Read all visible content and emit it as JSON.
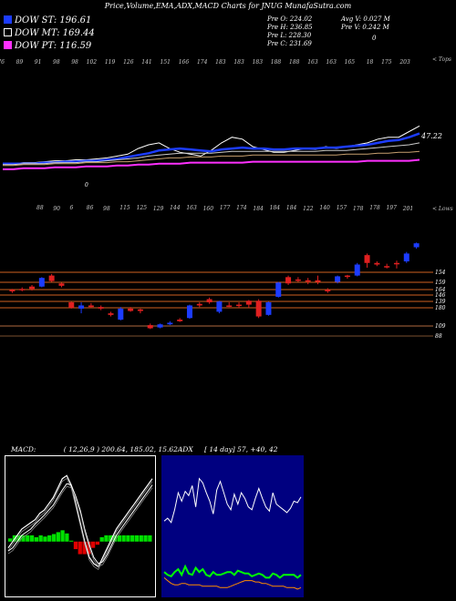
{
  "title": "Price,Volume,EMA,ADX,MACD Charts for JNUG MunafaSutra.com",
  "legend": [
    {
      "label": "DOW ST: 196.61",
      "color": "#1c3cff"
    },
    {
      "label": "DOW MT: 169.44",
      "color": "#000000"
    },
    {
      "label": "DOW PT: 116.59",
      "color": "#ff30ff"
    }
  ],
  "price_info": {
    "open": "Pre  O: 224.02",
    "high": "Pre  H: 236.85",
    "low": "Pre  L: 228.30",
    "close": "Pre  C: 231.69",
    "avg_vol": "Avg V: 0.027 M",
    "pre_vol": "Pre  V: 0.242  M",
    "zero": "0"
  },
  "panel_labels": {
    "top": "< Tops",
    "low": "< Lows"
  },
  "ema_panel": {
    "last_value": "47.22",
    "zero_tick": "0"
  },
  "macd_text": {
    "label": "MACD:",
    "params": "( 12,26,9 ) 200.64,  185.02,  15.62",
    "adx": "ADX",
    "adx_values": "[ 14  day] 57,  +40,  42"
  },
  "chart_data": [
    {
      "type": "candlestick",
      "top_labels": [
        "76",
        "89",
        "91",
        "98",
        "98",
        "102",
        "119",
        "126",
        "141",
        "151",
        "166",
        "174",
        "183",
        "183",
        "183",
        "188",
        "188",
        "163",
        "163",
        "165",
        "18",
        "175",
        "203"
      ],
      "bottom_labels": [
        "88",
        "90",
        "6",
        "86",
        "98",
        "115",
        "125",
        "129",
        "144",
        "163",
        "160",
        "177",
        "174",
        "184",
        "184",
        "184",
        "122",
        "140",
        "157",
        "178",
        "178",
        "197",
        "201"
      ],
      "levels": [
        "154",
        "159",
        "164",
        "146",
        "139",
        "180",
        "109",
        "88"
      ],
      "candles": [
        {
          "o": 138,
          "h": 141,
          "l": 136,
          "c": 140,
          "up": false
        },
        {
          "o": 140,
          "h": 143,
          "l": 138,
          "c": 141,
          "up": false
        },
        {
          "o": 141,
          "h": 146,
          "l": 139,
          "c": 144,
          "up": false
        },
        {
          "o": 144,
          "h": 156,
          "l": 143,
          "c": 155,
          "up": true
        },
        {
          "o": 158,
          "h": 160,
          "l": 150,
          "c": 151,
          "up": false
        },
        {
          "o": 148,
          "h": 149,
          "l": 143,
          "c": 145,
          "up": false
        },
        {
          "o": 124,
          "h": 125,
          "l": 116,
          "c": 117,
          "up": false
        },
        {
          "o": 116,
          "h": 124,
          "l": 110,
          "c": 120,
          "up": true
        },
        {
          "o": 120,
          "h": 123,
          "l": 117,
          "c": 118,
          "up": false
        },
        {
          "o": 118,
          "h": 120,
          "l": 114,
          "c": 116,
          "up": false
        },
        {
          "o": 108,
          "h": 112,
          "l": 106,
          "c": 110,
          "up": false
        },
        {
          "o": 102,
          "h": 118,
          "l": 101,
          "c": 116,
          "up": true
        },
        {
          "o": 116,
          "h": 118,
          "l": 112,
          "c": 113,
          "up": false
        },
        {
          "o": 113,
          "h": 116,
          "l": 110,
          "c": 115,
          "up": false
        },
        {
          "o": 95,
          "h": 97,
          "l": 90,
          "c": 91,
          "up": false
        },
        {
          "o": 92,
          "h": 97,
          "l": 91,
          "c": 96,
          "up": true
        },
        {
          "o": 96,
          "h": 100,
          "l": 95,
          "c": 98,
          "up": true
        },
        {
          "o": 100,
          "h": 104,
          "l": 99,
          "c": 102,
          "up": false
        },
        {
          "o": 104,
          "h": 121,
          "l": 103,
          "c": 120,
          "up": true
        },
        {
          "o": 120,
          "h": 124,
          "l": 118,
          "c": 122,
          "up": false
        },
        {
          "o": 124,
          "h": 130,
          "l": 122,
          "c": 128,
          "up": false
        },
        {
          "o": 112,
          "h": 126,
          "l": 110,
          "c": 125,
          "up": true
        },
        {
          "o": 119,
          "h": 124,
          "l": 118,
          "c": 120,
          "up": false
        },
        {
          "o": 121,
          "h": 124,
          "l": 117,
          "c": 121,
          "up": false
        },
        {
          "o": 121,
          "h": 127,
          "l": 117,
          "c": 126,
          "up": false
        },
        {
          "o": 126,
          "h": 128,
          "l": 104,
          "c": 106,
          "up": false
        },
        {
          "o": 108,
          "h": 125,
          "l": 107,
          "c": 124,
          "up": true
        },
        {
          "o": 131,
          "h": 150,
          "l": 130,
          "c": 149,
          "up": true
        },
        {
          "o": 148,
          "h": 158,
          "l": 146,
          "c": 156,
          "up": false
        },
        {
          "o": 153,
          "h": 156,
          "l": 150,
          "c": 152,
          "up": false
        },
        {
          "o": 152,
          "h": 155,
          "l": 147,
          "c": 152,
          "up": false
        },
        {
          "o": 152,
          "h": 158,
          "l": 147,
          "c": 150,
          "up": false
        },
        {
          "o": 140,
          "h": 142,
          "l": 136,
          "c": 138,
          "up": false
        },
        {
          "o": 150,
          "h": 158,
          "l": 148,
          "c": 157,
          "up": true
        },
        {
          "o": 157,
          "h": 159,
          "l": 154,
          "c": 158,
          "up": false
        },
        {
          "o": 158,
          "h": 174,
          "l": 157,
          "c": 172,
          "up": true
        },
        {
          "o": 174,
          "h": 186,
          "l": 168,
          "c": 184,
          "up": false
        },
        {
          "o": 174,
          "h": 176,
          "l": 170,
          "c": 172,
          "up": false
        },
        {
          "o": 170,
          "h": 173,
          "l": 167,
          "c": 170,
          "up": false
        },
        {
          "o": 174,
          "h": 177,
          "l": 167,
          "c": 174,
          "up": false
        },
        {
          "o": 176,
          "h": 188,
          "l": 174,
          "c": 186,
          "up": true
        },
        {
          "o": 194,
          "h": 200,
          "l": 192,
          "c": 199,
          "up": true
        }
      ],
      "ylim": [
        80,
        205
      ]
    },
    {
      "type": "line",
      "series": [
        {
          "color": "#ffffff",
          "values": [
            2,
            2,
            3,
            3,
            4,
            5,
            5,
            6,
            6,
            7,
            8,
            10,
            12,
            18,
            22,
            24,
            18,
            14,
            12,
            10,
            16,
            24,
            30,
            28,
            20,
            17,
            14,
            14,
            16,
            18,
            17,
            20,
            18,
            20,
            22,
            24,
            28,
            30,
            30,
            36,
            42
          ]
        },
        {
          "color": "#1c3cff",
          "values": [
            2,
            2,
            2,
            2,
            3,
            3,
            4,
            4,
            5,
            5,
            6,
            7,
            9,
            11,
            13,
            16,
            17,
            18,
            17,
            16,
            15,
            17,
            18,
            19,
            18,
            18,
            17,
            17,
            18,
            18,
            18,
            19,
            19,
            20,
            21,
            22,
            24,
            26,
            27,
            30,
            34
          ]
        },
        {
          "color": "#cccccc",
          "values": [
            1,
            1,
            2,
            2,
            2,
            3,
            3,
            3,
            4,
            4,
            5,
            6,
            7,
            8,
            10,
            11,
            12,
            13,
            13,
            13,
            13,
            14,
            15,
            15,
            15,
            15,
            15,
            15,
            15,
            15,
            15,
            16,
            16,
            16,
            17,
            18,
            19,
            20,
            21,
            22,
            24
          ]
        },
        {
          "color": "#c8a070",
          "values": [
            0,
            0,
            1,
            1,
            1,
            2,
            2,
            2,
            3,
            3,
            3,
            4,
            4,
            5,
            6,
            7,
            8,
            8,
            9,
            9,
            9,
            10,
            10,
            10,
            11,
            11,
            11,
            11,
            11,
            11,
            11,
            11,
            11,
            12,
            12,
            12,
            13,
            13,
            14,
            14,
            15
          ]
        },
        {
          "color": "#ff30ff",
          "values": [
            -4,
            -4,
            -3,
            -3,
            -3,
            -2,
            -2,
            -2,
            -1,
            -1,
            -1,
            0,
            0,
            1,
            1,
            2,
            2,
            2,
            3,
            3,
            3,
            3,
            3,
            3,
            4,
            4,
            4,
            4,
            4,
            4,
            4,
            4,
            4,
            4,
            4,
            5,
            5,
            5,
            5,
            5,
            6
          ]
        }
      ],
      "ylim": [
        -8,
        50
      ]
    },
    {
      "type": "area",
      "xlabel": "",
      "macd": [
        -0.1,
        0.0,
        0.1,
        0.2,
        0.25,
        0.3,
        0.35,
        0.45,
        0.5,
        0.6,
        0.7,
        0.85,
        1.0,
        1.05,
        0.9,
        0.6,
        0.3,
        0.0,
        -0.25,
        -0.35,
        -0.4,
        -0.25,
        -0.1,
        0.05,
        0.2,
        0.3,
        0.4,
        0.5,
        0.6,
        0.7,
        0.8,
        0.9,
        1.0
      ],
      "signal": [
        -0.15,
        -0.1,
        0.0,
        0.1,
        0.15,
        0.2,
        0.28,
        0.35,
        0.42,
        0.5,
        0.58,
        0.7,
        0.82,
        0.92,
        0.9,
        0.72,
        0.5,
        0.2,
        -0.05,
        -0.25,
        -0.35,
        -0.32,
        -0.2,
        -0.05,
        0.1,
        0.2,
        0.3,
        0.4,
        0.5,
        0.6,
        0.7,
        0.8,
        0.9
      ],
      "histogram": [
        0.05,
        0.1,
        0.1,
        0.1,
        0.1,
        0.1,
        0.07,
        0.1,
        0.08,
        0.1,
        0.12,
        0.15,
        0.18,
        0.13,
        0.0,
        -0.12,
        -0.2,
        -0.2,
        -0.2,
        -0.1,
        -0.05,
        0.07,
        0.1,
        0.1,
        0.1,
        0.1,
        0.1,
        0.1,
        0.1,
        0.1,
        0.1,
        0.1,
        0.1
      ],
      "ylim": [
        -0.8,
        1.3
      ]
    },
    {
      "type": "line",
      "series": [
        {
          "color": "#ffffff",
          "values": [
            50,
            52,
            49,
            58,
            70,
            64,
            71,
            68,
            75,
            60,
            80,
            77,
            70,
            64,
            55,
            72,
            78,
            70,
            62,
            58,
            69,
            62,
            70,
            66,
            60,
            58,
            66,
            73,
            66,
            60,
            57,
            70,
            62,
            60,
            58,
            56,
            59,
            64,
            63,
            67
          ]
        },
        {
          "color": "#00ff00",
          "values": [
            14,
            12,
            11,
            14,
            16,
            12,
            18,
            13,
            12,
            17,
            14,
            16,
            12,
            11,
            14,
            12,
            12,
            13,
            14,
            14,
            12,
            15,
            14,
            13,
            13,
            11,
            12,
            13,
            12,
            10,
            10,
            13,
            12,
            10,
            12,
            12,
            12,
            12,
            10,
            12
          ]
        },
        {
          "color": "#ff8c00",
          "values": [
            10,
            8,
            6,
            5,
            5,
            6,
            6,
            5,
            5,
            5,
            5,
            4,
            4,
            4,
            4,
            4,
            3,
            3,
            3,
            4,
            5,
            6,
            7,
            8,
            8,
            8,
            7,
            7,
            6,
            6,
            5,
            4,
            4,
            4,
            4,
            3,
            3,
            3,
            2,
            3
          ]
        }
      ],
      "ylim": [
        0,
        90
      ]
    }
  ]
}
